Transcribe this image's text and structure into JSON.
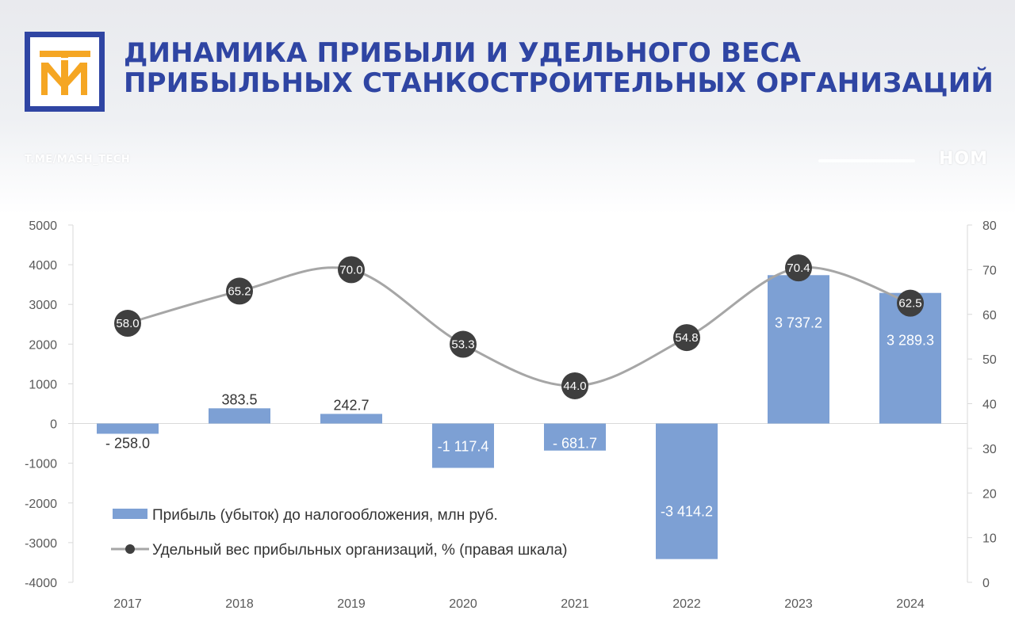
{
  "header": {
    "title_line1": "ДИНАМИКА ПРИБЫЛИ И УДЕЛЬНОГО ВЕСА",
    "title_line2": "ПРИБЫЛЬНЫХ СТАНКОСТРОИТЕЛЬНЫХ ОРГАНИЗАЦИЙ",
    "handle": "T.ME/MASH_TECH",
    "brand": "НОМ"
  },
  "colors": {
    "title": "#2f45a3",
    "logo_frame": "#2f45a3",
    "logo_mark": "#f5a623",
    "bar": "#7da0d4",
    "line": "#a6a6a6",
    "point": "#3f3f3f"
  },
  "chart_data": {
    "type": "bar",
    "categories": [
      "2017",
      "2018",
      "2019",
      "2020",
      "2021",
      "2022",
      "2023",
      "2024"
    ],
    "series": [
      {
        "name": "Прибыль (убыток) до налогообложения, млн руб.",
        "type": "bar",
        "axis": "left",
        "values": [
          -258.0,
          383.5,
          242.7,
          -1117.4,
          -681.7,
          -3414.2,
          3737.2,
          3289.3
        ],
        "labels": [
          "- 258.0",
          "383.5",
          "242.7",
          "-1 117.4",
          "- 681.7",
          "-3 414.2",
          "3 737.2",
          "3 289.3"
        ]
      },
      {
        "name": "Удельный вес прибыльных организаций, % (правая шкала)",
        "type": "line",
        "axis": "right",
        "values": [
          58.0,
          65.2,
          70.0,
          53.3,
          44.0,
          54.8,
          70.4,
          62.5
        ],
        "labels": [
          "58.0",
          "65.2",
          "70.0",
          "53.3",
          "44.0",
          "54.8",
          "70.4",
          "62.5"
        ]
      }
    ],
    "y_left": {
      "range": [
        -4000,
        5000
      ],
      "ticks": [
        "5000",
        "4000",
        "3000",
        "2000",
        "1000",
        "0",
        "-1000",
        "-2000",
        "-3000",
        "-4000"
      ]
    },
    "y_right": {
      "range": [
        0,
        80
      ],
      "ticks": [
        "80",
        "70",
        "60",
        "50",
        "40",
        "30",
        "20",
        "10",
        "0"
      ]
    },
    "legend": "inside-bottom-left",
    "grid": false
  }
}
